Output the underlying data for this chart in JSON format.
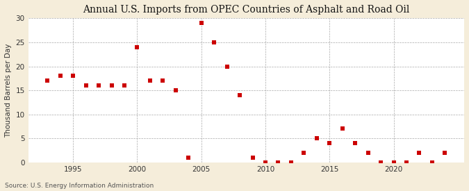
{
  "title": "Annual U.S. Imports from OPEC Countries of Asphalt and Road Oil",
  "ylabel": "Thousand Barrels per Day",
  "source": "Source: U.S. Energy Information Administration",
  "background_color": "#f5edda",
  "plot_background_color": "#ffffff",
  "marker_color": "#cc0000",
  "marker": "s",
  "marker_size": 4,
  "years": [
    1993,
    1994,
    1995,
    1996,
    1997,
    1998,
    1999,
    2000,
    2001,
    2002,
    2003,
    2004,
    2005,
    2006,
    2007,
    2008,
    2009,
    2010,
    2011,
    2012,
    2013,
    2014,
    2015,
    2016,
    2017,
    2018,
    2019,
    2020,
    2021,
    2022,
    2023,
    2024
  ],
  "values": [
    17,
    18,
    18,
    16,
    16,
    16,
    16,
    24,
    17,
    17,
    15,
    1,
    29,
    25,
    20,
    14,
    1,
    0,
    0,
    0,
    2,
    5,
    4,
    7,
    4,
    2,
    0,
    0,
    0,
    2,
    0,
    2
  ],
  "xlim": [
    1991.5,
    2025.5
  ],
  "ylim": [
    0,
    30
  ],
  "yticks": [
    0,
    5,
    10,
    15,
    20,
    25,
    30
  ],
  "xticks": [
    1995,
    2000,
    2005,
    2010,
    2015,
    2020
  ],
  "grid_color": "#aaaaaa",
  "grid_linestyle": "--",
  "title_fontsize": 10,
  "label_fontsize": 7.5,
  "tick_fontsize": 7.5,
  "source_fontsize": 6.5
}
